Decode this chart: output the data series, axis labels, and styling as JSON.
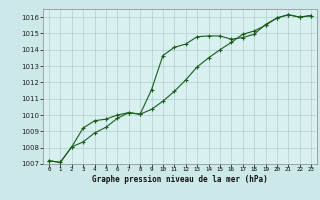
{
  "title": "Graphe pression niveau de la mer (hPa)",
  "background_color": "#cce8e8",
  "plot_bg_color": "#d8f0f0",
  "grid_color": "#b0d0d0",
  "line_color": "#1a5c1a",
  "border_color": "#888888",
  "x_labels": [
    "0",
    "1",
    "2",
    "3",
    "4",
    "5",
    "6",
    "7",
    "8",
    "9",
    "10",
    "11",
    "12",
    "13",
    "14",
    "15",
    "16",
    "17",
    "18",
    "19",
    "20",
    "21",
    "22",
    "23"
  ],
  "ylim": [
    1007.0,
    1016.5
  ],
  "yticks": [
    1007,
    1008,
    1009,
    1010,
    1011,
    1012,
    1013,
    1014,
    1015,
    1016
  ],
  "line1_x": [
    0,
    1,
    2,
    3,
    4,
    5,
    6,
    7,
    8,
    9,
    10,
    11,
    12,
    13,
    14,
    15,
    16,
    17,
    18,
    19,
    20,
    21,
    22,
    23
  ],
  "line1_y": [
    1007.2,
    1007.1,
    1008.05,
    1009.2,
    1009.65,
    1009.75,
    1010.0,
    1010.15,
    1010.05,
    1011.55,
    1013.65,
    1014.15,
    1014.35,
    1014.8,
    1014.85,
    1014.85,
    1014.65,
    1014.75,
    1014.95,
    1015.55,
    1015.95,
    1016.15,
    1016.0,
    1016.1
  ],
  "line2_x": [
    0,
    1,
    2,
    3,
    4,
    5,
    6,
    7,
    8,
    9,
    10,
    11,
    12,
    13,
    14,
    15,
    16,
    17,
    18,
    19,
    20,
    21,
    22,
    23
  ],
  "line2_y": [
    1007.2,
    1007.1,
    1008.05,
    1008.35,
    1008.9,
    1009.25,
    1009.8,
    1010.15,
    1010.05,
    1010.35,
    1010.85,
    1011.45,
    1012.15,
    1012.95,
    1013.5,
    1014.0,
    1014.45,
    1014.95,
    1015.15,
    1015.5,
    1015.95,
    1016.15,
    1016.0,
    1016.1
  ]
}
